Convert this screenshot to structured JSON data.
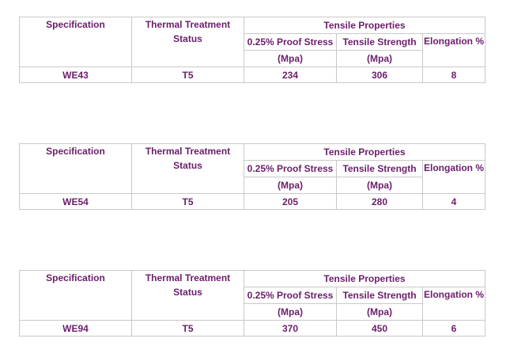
{
  "headers": {
    "specification": "Specification",
    "thermal_line1": "Thermal Treatment",
    "thermal_line2": "Status",
    "tensile_properties": "Tensile Properties",
    "proof_stress": "0.25% Proof Stress",
    "tensile_strength": "Tensile Strength",
    "elongation": "Elongation %",
    "unit_proof": "(Mpa)",
    "unit_tensile": "(Mpa)"
  },
  "tables": [
    {
      "spec": "WE43",
      "status": "T5",
      "proof": "234",
      "tensile": "306",
      "elongation": "8"
    },
    {
      "spec": "WE54",
      "status": "T5",
      "proof": "205",
      "tensile": "280",
      "elongation": "4"
    },
    {
      "spec": "WE94",
      "status": "T5",
      "proof": "370",
      "tensile": "450",
      "elongation": "6"
    }
  ],
  "colors": {
    "text": "#6b1d6b",
    "border": "#c9c9c9",
    "background": "#ffffff"
  }
}
